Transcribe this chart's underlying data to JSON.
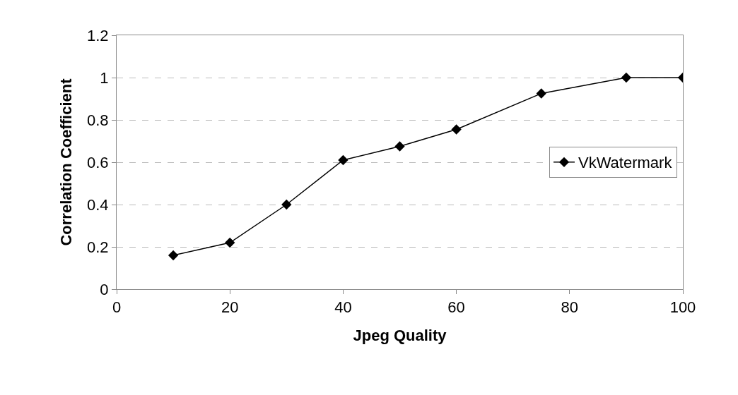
{
  "chart_data": {
    "type": "line",
    "xlabel": "Jpeg Quality",
    "ylabel": "Correlation Coefficient",
    "x": [
      10,
      20,
      30,
      40,
      50,
      60,
      75,
      90,
      100
    ],
    "series": [
      {
        "name": "VkWatermark",
        "color": "#000000",
        "values": [
          0.16,
          0.22,
          0.4,
          0.61,
          0.675,
          0.755,
          0.925,
          1.0,
          1.0
        ]
      }
    ],
    "xlim": [
      0,
      100
    ],
    "xticks": [
      0,
      20,
      40,
      60,
      80,
      100
    ],
    "ylim": [
      0,
      1.2
    ],
    "yticks": [
      0,
      0.2,
      0.4,
      0.6,
      0.8,
      1,
      1.2
    ],
    "grid": "y",
    "legend": "right",
    "marker": "diamond",
    "line_style": "solid"
  }
}
